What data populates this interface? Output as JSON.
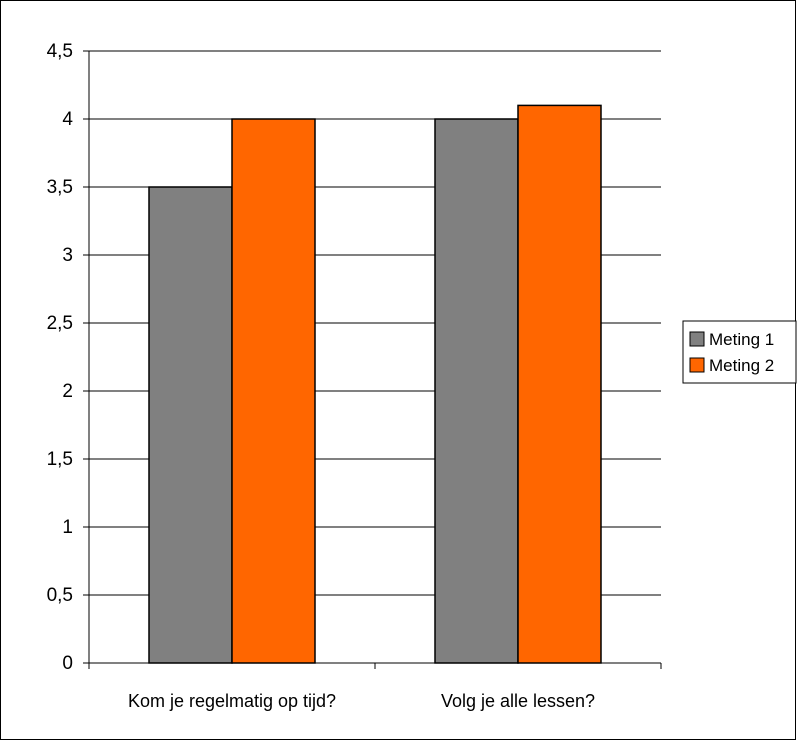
{
  "chart_data": {
    "type": "bar",
    "categories": [
      "Kom je regelmatig op tijd?",
      "Volg je alle lessen?"
    ],
    "series": [
      {
        "name": "Meting 1",
        "values": [
          3.5,
          4.0
        ],
        "color": "#808080"
      },
      {
        "name": "Meting 2",
        "values": [
          4.0,
          4.1
        ],
        "color": "#ff6600"
      }
    ],
    "ylim": [
      0,
      4.5
    ],
    "yticks": [
      0,
      0.5,
      1,
      1.5,
      2,
      2.5,
      3,
      3.5,
      4,
      4.5
    ],
    "ytick_labels": [
      "0",
      "0,5",
      "1",
      "1,5",
      "2",
      "2,5",
      "3",
      "3,5",
      "4",
      "4,5"
    ],
    "grid": true,
    "legend_position": "right",
    "title": "",
    "xlabel": "",
    "ylabel": ""
  }
}
